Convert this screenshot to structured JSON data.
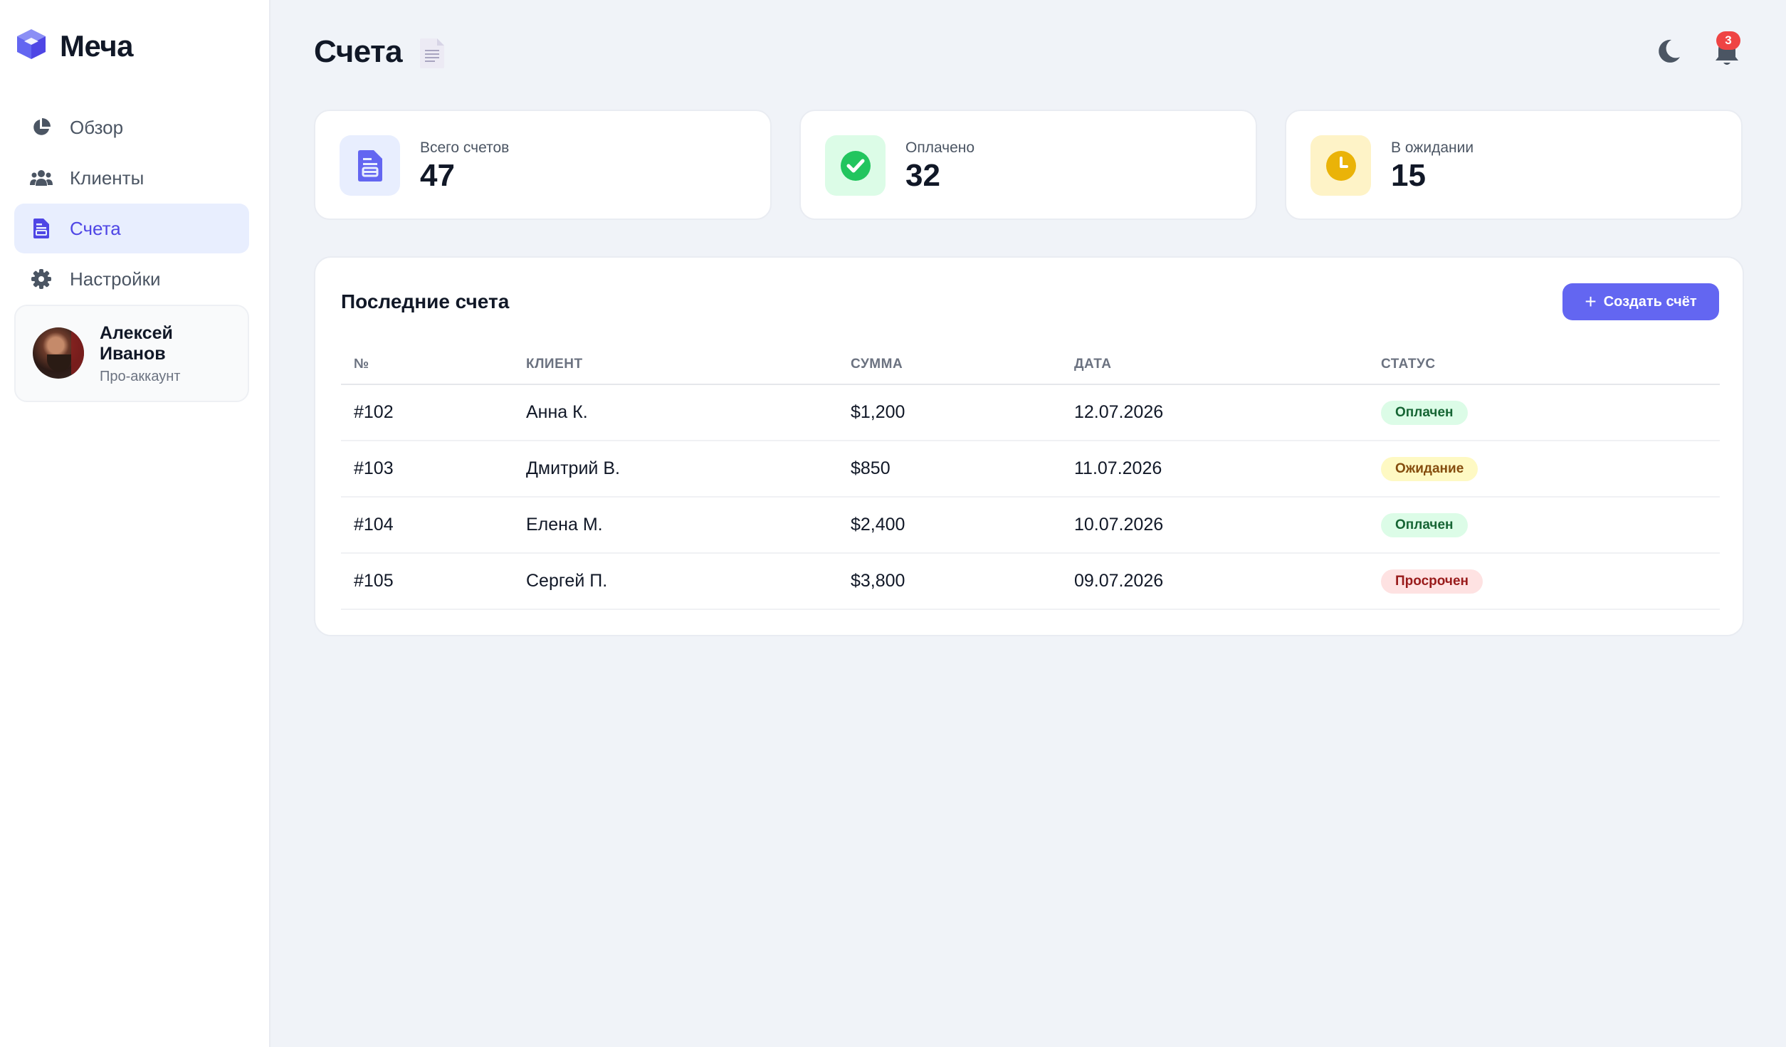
{
  "brand": {
    "name": "Меча"
  },
  "nav": {
    "items": [
      {
        "label": "Обзор",
        "icon": "pie-chart-icon",
        "active": false
      },
      {
        "label": "Клиенты",
        "icon": "users-icon",
        "active": false
      },
      {
        "label": "Счета",
        "icon": "invoice-icon",
        "active": true
      },
      {
        "label": "Настройки",
        "icon": "gear-icon",
        "active": false
      }
    ]
  },
  "profile": {
    "name": "Алексей Иванов",
    "plan": "Про-аккаунт"
  },
  "header": {
    "title": "Счета",
    "notifications": "3"
  },
  "stats": [
    {
      "label": "Всего счетов",
      "value": "47",
      "icon": "invoice-icon",
      "color": "#6366f1"
    },
    {
      "label": "Оплачено",
      "value": "32",
      "icon": "check-circle-icon",
      "color": "#22c55e"
    },
    {
      "label": "В ожидании",
      "value": "15",
      "icon": "clock-icon",
      "color": "#eab308"
    }
  ],
  "invoices": {
    "title": "Последние счета",
    "create_label": "Создать счёт",
    "columns": [
      "№",
      "КЛИЕНТ",
      "СУММА",
      "ДАТА",
      "СТАТУС"
    ],
    "rows": [
      {
        "id": "#102",
        "client": "Анна К.",
        "amount": "$1,200",
        "date": "12.07.2026",
        "status": "Оплачен"
      },
      {
        "id": "#103",
        "client": "Дмитрий В.",
        "amount": "$850",
        "date": "11.07.2026",
        "status": "Ожидание"
      },
      {
        "id": "#104",
        "client": "Елена М.",
        "amount": "$2,400",
        "date": "10.07.2026",
        "status": "Оплачен"
      },
      {
        "id": "#105",
        "client": "Сергей П.",
        "amount": "$3,800",
        "date": "09.07.2026",
        "status": "Просрочен"
      }
    ]
  },
  "colors": {
    "accent": "#6366f1",
    "paid": "#166534",
    "pending": "#854d0e",
    "overdue": "#991b1b"
  }
}
